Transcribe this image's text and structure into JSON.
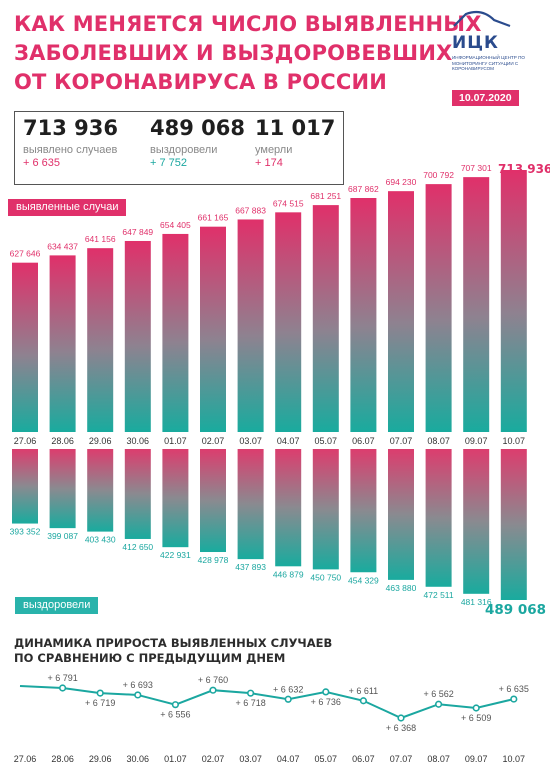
{
  "title": {
    "line1": "КАК МЕНЯЕТСЯ ЧИСЛО ВЫЯВЛЕННЫХ",
    "line2": "ЗАБОЛЕВШИХ И ВЫЗДОРОВЕВШИХ",
    "line3": "ОТ КОРОНАВИРУСА В РОССИИ"
  },
  "logo": {
    "name": "ИЦК",
    "subtitle": "ИНФОРМАЦИОННЫЙ ЦЕНТР ПО МОНИТОРИНГУ СИТУАЦИИ С КОРОНАВИРУСОМ"
  },
  "date": "10.07.2020",
  "stats": {
    "cases": {
      "value": "713 936",
      "label": "выявлено случаев",
      "delta": "+ 6 635"
    },
    "recovered": {
      "value": "489 068",
      "label": "выздоровели",
      "delta": "+ 7 752"
    },
    "deaths": {
      "value": "11 017",
      "label": "умерли",
      "delta": "+ 174"
    }
  },
  "tags": {
    "cases": "выявленные случаи",
    "recovered": "выздоровели"
  },
  "dynamics_title": {
    "line1": "ДИНАМИКА ПРИРОСТА ВЫЯВЛЕННЫХ СЛУЧАЕВ",
    "line2": "ПО СРАВНЕНИЮ С ПРЕДЫДУЩИМ ДНЕМ"
  },
  "colors": {
    "pink": "#e0306a",
    "teal": "#1ba7a0"
  },
  "chart_data": [
    {
      "type": "bar",
      "categories": [
        "27.06",
        "28.06",
        "29.06",
        "30.06",
        "01.07",
        "02.07",
        "03.07",
        "04.07",
        "05.07",
        "06.07",
        "07.07",
        "08.07",
        "09.07",
        "10.07"
      ],
      "values": [
        627646,
        634437,
        641156,
        647849,
        654405,
        661165,
        667883,
        674515,
        681251,
        687862,
        694230,
        700792,
        707301,
        713936
      ],
      "labels": [
        "627 646",
        "634 437",
        "641 156",
        "647 849",
        "654 405",
        "661 165",
        "667 883",
        "674 515",
        "681 251",
        "687 862",
        "694 230",
        "700 792",
        "707 301",
        "713 936"
      ],
      "series_label": "выявленные случаи"
    },
    {
      "type": "bar",
      "categories": [
        "27.06",
        "28.06",
        "29.06",
        "30.06",
        "01.07",
        "02.07",
        "03.07",
        "04.07",
        "05.07",
        "06.07",
        "07.07",
        "08.07",
        "09.07",
        "10.07"
      ],
      "values": [
        393352,
        399087,
        403430,
        412650,
        422931,
        428978,
        437893,
        446879,
        450750,
        454329,
        463880,
        472511,
        481316,
        489068
      ],
      "labels": [
        "393 352",
        "399 087",
        "403 430",
        "412 650",
        "422 931",
        "428 978",
        "437 893",
        "446 879",
        "450 750",
        "454 329",
        "463 880",
        "472 511",
        "481 316",
        "489 068"
      ],
      "series_label": "выздоровели"
    },
    {
      "type": "line",
      "categories": [
        "27.06",
        "28.06",
        "29.06",
        "30.06",
        "01.07",
        "02.07",
        "03.07",
        "04.07",
        "05.07",
        "06.07",
        "07.07",
        "08.07",
        "09.07",
        "10.07"
      ],
      "values": [
        6791,
        6719,
        6693,
        6556,
        6760,
        6718,
        6632,
        6736,
        6611,
        6368,
        6562,
        6509,
        6635
      ],
      "point_categories": [
        "28.06",
        "29.06",
        "30.06",
        "01.07",
        "02.07",
        "03.07",
        "04.07",
        "05.07",
        "06.07",
        "07.07",
        "08.07",
        "09.07",
        "10.07"
      ],
      "labels": [
        "+ 6 791",
        "+ 6 719",
        "+ 6 693",
        "+ 6 556",
        "+ 6 760",
        "+ 6 718",
        "+ 6 632",
        "+ 6 736",
        "+ 6 611",
        "+ 6 368",
        "+ 6 562",
        "+ 6 509",
        "+ 6 635"
      ],
      "title": "ДИНАМИКА ПРИРОСТА ВЫЯВЛЕННЫХ СЛУЧАЕВ ПО СРАВНЕНИЮ С ПРЕДЫДУЩИМ ДНЕМ"
    }
  ]
}
